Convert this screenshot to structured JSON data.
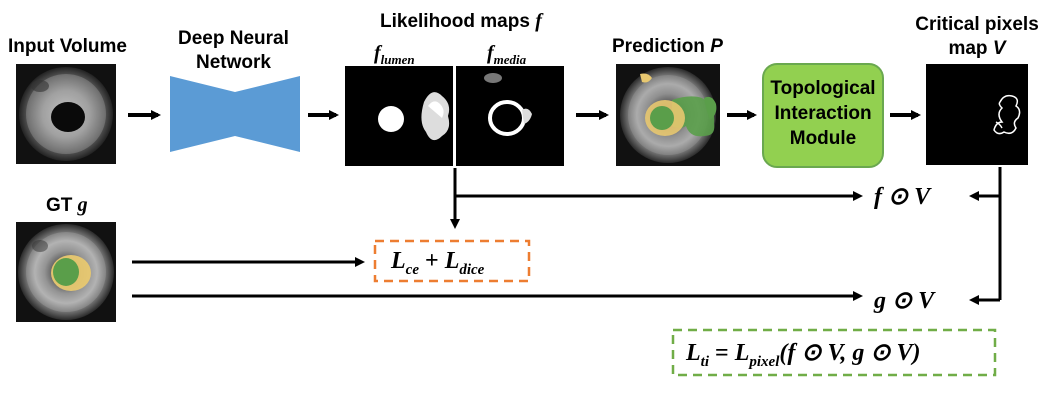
{
  "labels": {
    "input_volume": "Input Volume",
    "dnn_line1": "Deep Neural",
    "dnn_line2": "Network",
    "likelihood_maps": "Likelihood maps",
    "likelihood_f": "f",
    "f_lumen_base": "f",
    "f_lumen_sub": "lumen",
    "f_media_base": "f",
    "f_media_sub": "media",
    "prediction": "Prediction",
    "prediction_p": "P",
    "tim_line1": "Topological",
    "tim_line2": "Interaction",
    "tim_line3": "Module",
    "critical_line1": "Critical pixels",
    "critical_line2": "map",
    "critical_v": "V",
    "gt": "GT",
    "gt_g": "g"
  },
  "formulas": {
    "f_odot_v": "f ⊙ V",
    "g_odot_v": "g ⊙ V",
    "loss_ce": "L",
    "loss_ce_sub": "ce",
    "loss_plus": " + ",
    "loss_dice": "L",
    "loss_dice_sub": "dice",
    "lti_L": "L",
    "lti_sub": "ti",
    "lti_eq": " = ",
    "lpixel_L": "L",
    "lpixel_sub": "pixel",
    "lpixel_args": "(f ⊙ V, g ⊙ V)"
  },
  "colors": {
    "dnn_blue": "#5b9bd5",
    "tim_green_fill": "#92d050",
    "tim_green_border": "#6aa84f",
    "dashed_orange": "#ed7d31",
    "dashed_green": "#70ad47",
    "lumen_green": "#5a9e4a",
    "media_yellow": "#e8c870",
    "arrow": "#000000"
  }
}
